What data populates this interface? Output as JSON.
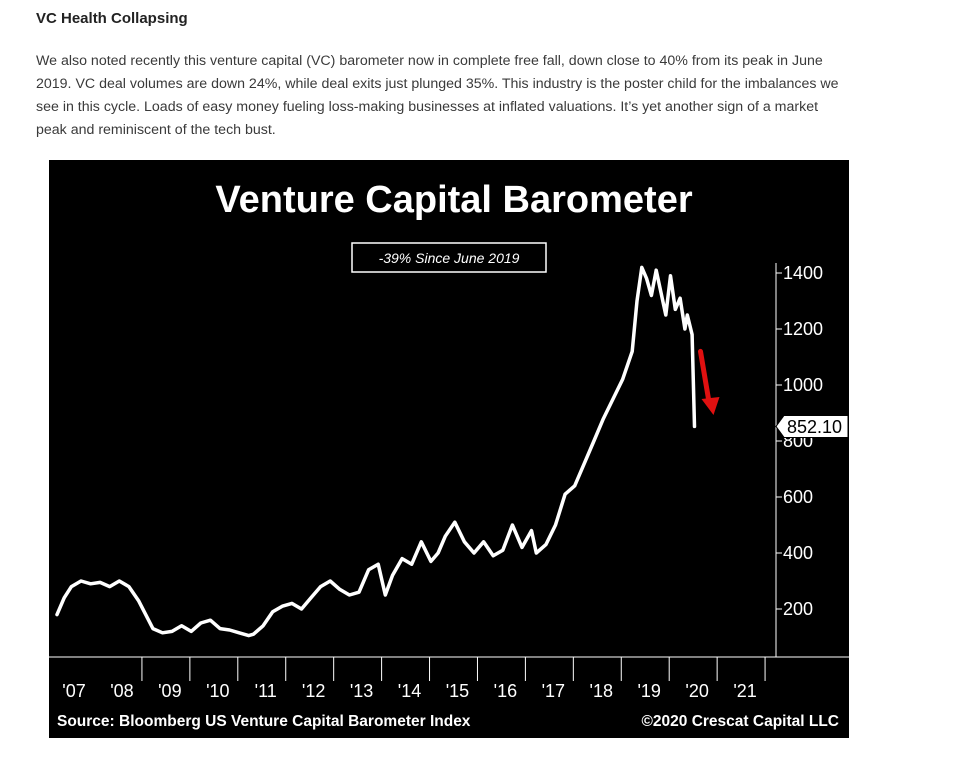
{
  "article": {
    "heading": "VC Health Collapsing",
    "body_lines": [
      "We also noted recently this venture capital (VC) barometer now in complete free fall, down close to 40% from its peak in June",
      "2019. VC deal volumes are down 24%, while deal exits just plunged 35%. This industry is the poster child for the imbalances we",
      "see in this cycle. Loads of easy money fueling loss-making businesses at inflated valuations. It’s yet another sign of a market",
      "peak and reminiscent of the tech bust."
    ]
  },
  "chart_data": {
    "type": "line",
    "title": "Venture Capital Barometer",
    "annotation": "-39% Since June 2019",
    "last_value_label": "852.10",
    "source": "Source: Bloomberg US Venture Capital Barometer Index",
    "copyright": "©2020 Crescat Capital LLC",
    "categories": [
      "'07",
      "'08",
      "'09",
      "'10",
      "'11",
      "'12",
      "'13",
      "'14",
      "'15",
      "'16",
      "'17",
      "'18",
      "'19",
      "'20",
      "'21"
    ],
    "yticks": [
      "200",
      "400",
      "600",
      "800",
      "1000",
      "1200",
      "1400"
    ],
    "ylim": [
      0,
      1500
    ],
    "grid": false,
    "y_axis_position": "right",
    "colors": {
      "background": "#000000",
      "line": "#ffffff",
      "arrow": "#e01010"
    },
    "series": [
      {
        "x": [
          2007.0,
          2007.15,
          2007.3,
          2007.5,
          2007.7,
          2007.9,
          2008.1,
          2008.3,
          2008.5,
          2008.7,
          2008.85,
          2009.0,
          2009.2,
          2009.4,
          2009.6,
          2009.8,
          2010.0,
          2010.2,
          2010.4,
          2010.6,
          2010.8,
          2011.0,
          2011.1,
          2011.3,
          2011.5,
          2011.7,
          2011.9,
          2012.1,
          2012.3,
          2012.5,
          2012.7,
          2012.9,
          2013.1,
          2013.3,
          2013.5,
          2013.7,
          2013.85,
          2014.0,
          2014.2,
          2014.4,
          2014.6,
          2014.8,
          2014.95,
          2015.1,
          2015.3,
          2015.5,
          2015.7,
          2015.9,
          2016.1,
          2016.3,
          2016.5,
          2016.7,
          2016.9,
          2017.0,
          2017.2,
          2017.4,
          2017.6,
          2017.8,
          2018.0,
          2018.2,
          2018.4,
          2018.6,
          2018.8,
          2019.0,
          2019.1,
          2019.2,
          2019.3,
          2019.4,
          2019.5,
          2019.6,
          2019.7,
          2019.8,
          2019.9,
          2020.0,
          2020.1,
          2020.15,
          2020.25,
          2020.3
        ],
        "y": [
          180,
          240,
          280,
          300,
          290,
          295,
          280,
          300,
          280,
          230,
          180,
          130,
          115,
          120,
          140,
          120,
          150,
          160,
          130,
          125,
          115,
          105,
          110,
          140,
          190,
          210,
          220,
          200,
          240,
          280,
          300,
          270,
          250,
          260,
          340,
          360,
          250,
          320,
          380,
          360,
          440,
          370,
          400,
          460,
          510,
          440,
          400,
          440,
          390,
          410,
          500,
          420,
          480,
          400,
          430,
          500,
          610,
          640,
          720,
          800,
          880,
          950,
          1020,
          1120,
          1300,
          1420,
          1380,
          1320,
          1410,
          1330,
          1250,
          1390,
          1270,
          1310,
          1200,
          1250,
          1180,
          852
        ]
      }
    ]
  }
}
